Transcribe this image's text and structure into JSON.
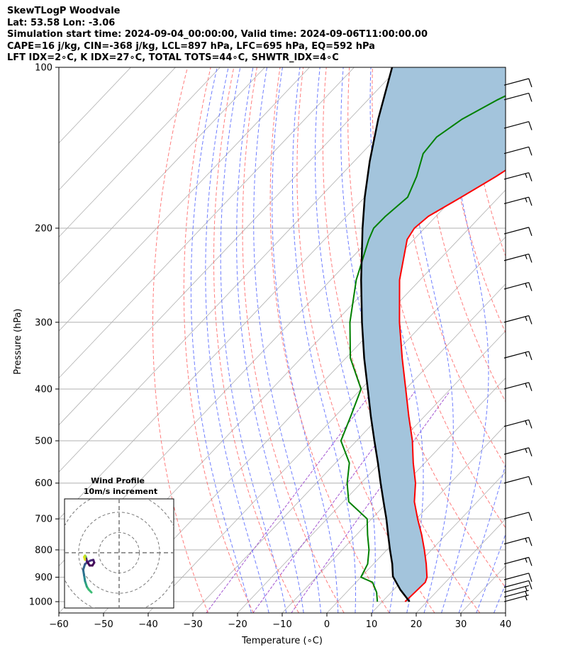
{
  "title": {
    "line1": "SkewTLogP Woodvale",
    "line2": "Lat: 53.58   Lon: -3.06",
    "line3": "Simulation start time: 2024-09-04_00:00:00, Valid time: 2024-09-06T11:00:00.00",
    "line4": "CAPE=16 j/kg, CIN=-368 j/kg, LCL=897 hPa, LFC=695 hPa, EQ=592 hPa",
    "line5": "LFT IDX=2∘C, K IDX=27∘C, TOTAL TOTS=44∘C, SHWTR_IDX=4∘C"
  },
  "colors": {
    "temperature": "#ff0000",
    "dewpoint": "#008000",
    "parcel": "#000000",
    "cape_fill": "#a3c4dc",
    "dry_adiabat": "#ff6666",
    "moist_adiabat": "#5566ff",
    "mixing_ratio": "#9944cc",
    "grid": "#b0b0b0"
  },
  "chart_data": {
    "type": "line",
    "subtype": "skew-T log-P",
    "xlabel": "Temperature (∘C)",
    "ylabel": "Pressure (hPa)",
    "xlim": [
      -60,
      40
    ],
    "ylim": [
      1050,
      100
    ],
    "yscale": "log",
    "grid": true,
    "xticks": [
      -60,
      -50,
      -40,
      -30,
      -20,
      -10,
      0,
      10,
      20,
      30,
      40
    ],
    "xtick_labels": [
      "−60",
      "−50",
      "−40",
      "−30",
      "−20",
      "−10",
      "0",
      "10",
      "20",
      "30",
      "40"
    ],
    "yticks": [
      1000,
      900,
      800,
      700,
      600,
      500,
      400,
      300,
      200,
      100
    ],
    "ytick_labels": [
      "1000",
      "900",
      "800",
      "700",
      "600",
      "500",
      "400",
      "300",
      "200",
      "100"
    ],
    "series": [
      {
        "key": "temperature",
        "pressure": [
          1000,
          960,
          920,
          900,
          850,
          800,
          750,
          700,
          650,
          600,
          550,
          500,
          450,
          400,
          350,
          300,
          250,
          210,
          200,
          190,
          175,
          160,
          145,
          135,
          125,
          115,
          108,
          100
        ],
        "temperature": [
          15.1,
          15.3,
          15.5,
          14.8,
          11.8,
          8.4,
          4.6,
          0.3,
          -4.1,
          -7.8,
          -12.6,
          -17.5,
          -23.5,
          -30.0,
          -37.4,
          -45.6,
          -54.6,
          -61.5,
          -62.3,
          -61.7,
          -58.4,
          -55.0,
          -52.0,
          -49.5,
          -47.3,
          -45.5,
          -44.2,
          -43.6
        ]
      },
      {
        "key": "dewpoint",
        "pressure": [
          1000,
          960,
          920,
          900,
          850,
          800,
          750,
          700,
          650,
          600,
          550,
          500,
          450,
          400,
          350,
          300,
          250,
          210,
          200,
          190,
          175,
          160,
          145,
          135,
          125,
          115,
          108,
          100
        ],
        "temperature": [
          8.9,
          6.7,
          3.7,
          0.0,
          -1.3,
          -4.0,
          -7.5,
          -11.0,
          -18.8,
          -23.1,
          -26.9,
          -33.5,
          -36.5,
          -40.0,
          -49.0,
          -56.7,
          -64.3,
          -70.1,
          -71.4,
          -71.3,
          -70.4,
          -72.8,
          -76.2,
          -76.7,
          -74.8,
          -71.0,
          -67.5,
          -63.5
        ]
      },
      {
        "key": "parcel",
        "pressure": [
          1000,
          950,
          897,
          850,
          800,
          750,
          700,
          650,
          600,
          550,
          500,
          450,
          400,
          350,
          300,
          250,
          200,
          175,
          150,
          125,
          100
        ],
        "temperature": [
          16.1,
          11.5,
          7.0,
          4.2,
          0.7,
          -2.9,
          -6.7,
          -11.0,
          -15.6,
          -20.5,
          -26.0,
          -32.0,
          -38.5,
          -45.9,
          -54.0,
          -63.2,
          -73.9,
          -80.0,
          -86.5,
          -93.6,
          -101.5
        ]
      }
    ],
    "wind_barbs": {
      "pressure": [
        1000,
        980,
        960,
        940,
        910,
        850,
        780,
        700,
        600,
        530,
        470,
        400,
        350,
        300,
        260,
        230,
        205,
        180,
        162,
        145,
        130,
        115,
        108
      ],
      "speed_kt": [
        5,
        5,
        5,
        10,
        10,
        15,
        15,
        10,
        10,
        15,
        15,
        15,
        15,
        15,
        15,
        15,
        10,
        15,
        15,
        10,
        10,
        10,
        10
      ]
    },
    "inset": {
      "title_line1": "Wind Profile",
      "title_line2": "10m/s increment",
      "type": "hodograph",
      "u": [
        -2.0,
        -2.6,
        -3.0,
        -3.4,
        -3.6,
        -3.8,
        -3.4,
        -2.8,
        -2.2,
        -1.6,
        -1.4,
        -1.8,
        -2.4,
        -3.0,
        -3.2,
        -3.4,
        -3.6,
        -3.4
      ],
      "v": [
        -4.0,
        -3.6,
        -3.2,
        -2.4,
        -1.6,
        -0.8,
        0.0,
        0.3,
        0.5,
        0.6,
        0.2,
        -0.2,
        -0.2,
        0.4,
        1.0,
        1.2,
        1.0,
        0.6
      ]
    }
  }
}
